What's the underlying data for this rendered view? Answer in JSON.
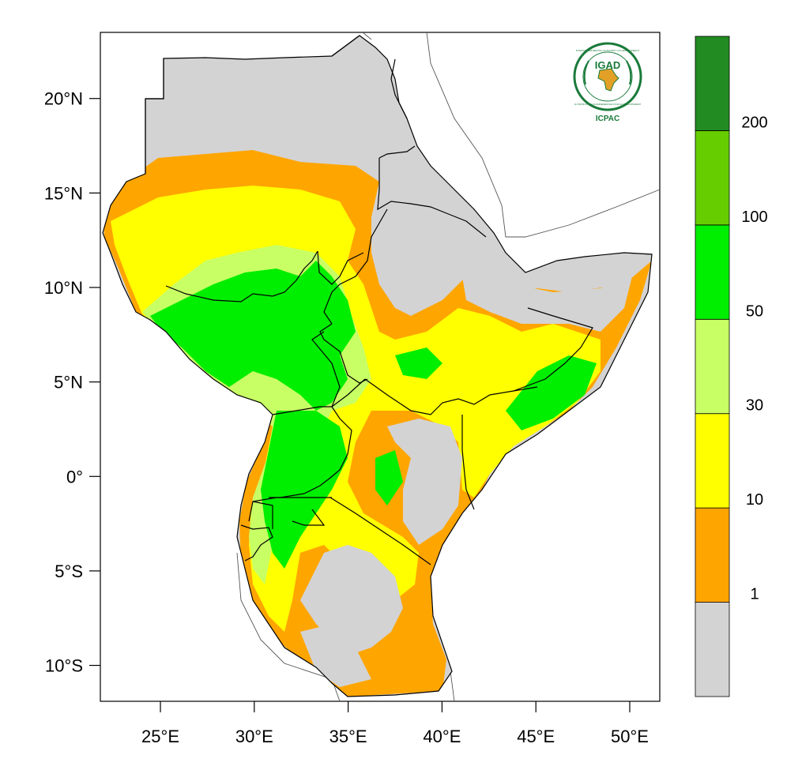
{
  "map": {
    "title_partial": "",
    "lon_range": [
      21.8,
      51.6
    ],
    "lat_range": [
      -11.9,
      23.5
    ],
    "x_ticks": [
      {
        "value": 25,
        "label": "25°E"
      },
      {
        "value": 30,
        "label": "30°E"
      },
      {
        "value": 35,
        "label": "35°E"
      },
      {
        "value": 40,
        "label": "40°E"
      },
      {
        "value": 45,
        "label": "45°E"
      },
      {
        "value": 50,
        "label": "50°E"
      }
    ],
    "y_ticks": [
      {
        "value": 20,
        "label": "20°N"
      },
      {
        "value": 15,
        "label": "15°N"
      },
      {
        "value": 10,
        "label": "10°N"
      },
      {
        "value": 5,
        "label": "5°N"
      },
      {
        "value": 0,
        "label": "0°"
      },
      {
        "value": -5,
        "label": "5°S"
      },
      {
        "value": -10,
        "label": "10°S"
      }
    ]
  },
  "legend": {
    "bins": [
      {
        "color": "#d3d3d3"
      },
      {
        "color": "#ffa500"
      },
      {
        "color": "#ffff00"
      },
      {
        "color": "#c8ff64"
      },
      {
        "color": "#00ee00"
      },
      {
        "color": "#66cd00"
      },
      {
        "color": "#228b22"
      }
    ],
    "labels": [
      "1",
      "10",
      "30",
      "50",
      "100",
      "200"
    ]
  },
  "logo": {
    "acronym": "IGAD",
    "full_name": "INTERGOVERNMENTAL AUTHORITY ON DEVELOPMENT",
    "subtitle": "AUTORITÉ INTERGOUVERNEMENTALE POUR LE DÉVELOPPEMENT",
    "org": "ICPAC",
    "color": "#1a7a3a"
  },
  "colors": {
    "land_no_data": "#d3d3d3",
    "border": "#000000",
    "coast_outside": "#555555"
  }
}
